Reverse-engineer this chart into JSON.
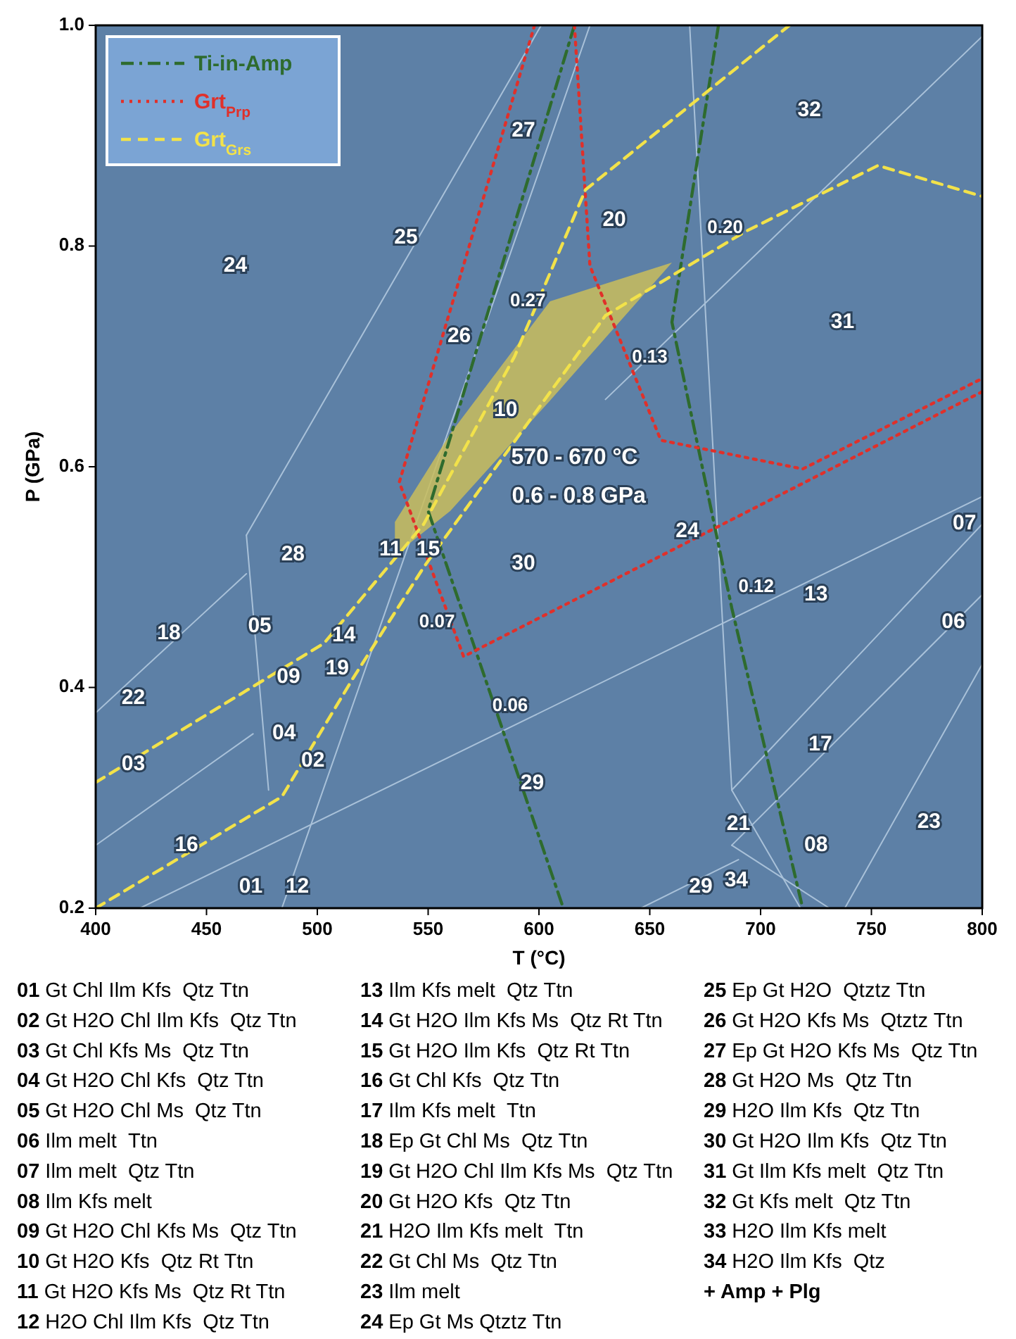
{
  "chart_data": {
    "type": "line",
    "xlabel": "T (°C)",
    "ylabel": "P (GPa)",
    "xlim": [
      400,
      800
    ],
    "ylim": [
      0.2,
      1.0
    ],
    "xticks": [
      400,
      450,
      500,
      550,
      600,
      650,
      700,
      750,
      800
    ],
    "yticks": [
      0.2,
      0.4,
      0.6,
      0.8,
      {
        "value": 1,
        "label": "1.0"
      }
    ],
    "grid": false,
    "legend": "top left",
    "series": [
      {
        "color": "#a9c1d9",
        "line_style": "solid",
        "x": [
          468,
          601
        ],
        "values": [
          0.538,
          1.0
        ]
      },
      {
        "color": "#a9c1d9",
        "line_style": "solid",
        "x": [
          400,
          468
        ],
        "values": [
          0.377,
          0.503
        ]
      },
      {
        "color": "#a9c1d9",
        "line_style": "solid",
        "x": [
          400,
          471
        ],
        "values": [
          0.257,
          0.358
        ]
      },
      {
        "color": "#a9c1d9",
        "line_style": "solid",
        "x": [
          468,
          478
        ],
        "values": [
          0.538,
          0.307
        ]
      },
      {
        "color": "#a9c1d9",
        "line_style": "solid",
        "x": [
          484,
          623
        ],
        "values": [
          0.2,
          1.0
        ]
      },
      {
        "color": "#a9c1d9",
        "line_style": "solid",
        "x": [
          668,
          687,
          718
        ],
        "values": [
          1.0,
          0.307,
          0.2
        ]
      },
      {
        "color": "#a9c1d9",
        "line_style": "solid",
        "x": [
          420,
          800
        ],
        "values": [
          0.2,
          0.573
        ]
      },
      {
        "color": "#a9c1d9",
        "line_style": "solid",
        "x": [
          687,
          800
        ],
        "values": [
          0.307,
          0.548
        ]
      },
      {
        "color": "#a9c1d9",
        "line_style": "solid",
        "x": [
          687,
          800
        ],
        "values": [
          0.257,
          0.484
        ]
      },
      {
        "color": "#a9c1d9",
        "line_style": "solid",
        "x": [
          738,
          800
        ],
        "values": [
          0.2,
          0.421
        ]
      },
      {
        "color": "#a9c1d9",
        "line_style": "solid",
        "x": [
          630,
          800
        ],
        "values": [
          0.661,
          0.99
        ]
      },
      {
        "color": "#a9c1d9",
        "line_style": "solid",
        "x": [
          687,
          731
        ],
        "values": [
          0.257,
          0.2
        ]
      },
      {
        "color": "#a9c1d9",
        "line_style": "solid",
        "x": [
          646,
          690
        ],
        "values": [
          0.2,
          0.244
        ]
      },
      {
        "color": "#c9bd5c",
        "x": [
          535,
          560,
          605,
          660
        ],
        "values": [
          null,
          null,
          null,
          null
        ],
        "lower": [
          0.52,
          0.56,
          0.66,
          0.785
        ],
        "upper": [
          0.55,
          0.63,
          0.75,
          0.785
        ]
      },
      {
        "name": "Ti-in-Amp",
        "color": "#2e6b2e",
        "line_style": "dashdot",
        "x": [
          616,
          550,
          611,
          null,
          681,
          660,
          687,
          719
        ],
        "values": [
          1.0,
          0.56,
          0.2,
          null,
          1.0,
          0.731,
          0.472,
          0.2
        ]
      },
      {
        "name": "Grt$_{Prp}$",
        "color": "#e0302a",
        "line_style": "dotted",
        "x": [
          616,
          623,
          655,
          719,
          800,
          null,
          598,
          537,
          566,
          800
        ],
        "values": [
          1.0,
          0.782,
          0.624,
          0.598,
          0.68,
          null,
          1.0,
          0.586,
          0.428,
          0.668
        ]
      },
      {
        "name": "Grt$_{Grs}$",
        "color": "#f2e24a",
        "line_style": "dashed",
        "x": [
          400,
          503,
          548,
          589,
          621,
          713,
          null,
          400,
          484,
          516,
          548,
          630,
          693,
          753,
          800
        ],
        "values": [
          0.314,
          0.44,
          0.548,
          0.7,
          0.851,
          1.0,
          null,
          0.2,
          0.301,
          0.408,
          0.509,
          0.737,
          0.813,
          0.873,
          0.845
        ]
      }
    ],
    "annotations": [
      "01",
      "02",
      "03",
      "04",
      "05",
      "06",
      "07",
      "08",
      "09",
      "10",
      "11",
      "12",
      "13",
      "14",
      "15",
      "16",
      "17",
      "18",
      "19",
      "20",
      "21",
      "22",
      "23",
      "24",
      "24",
      "25",
      "26",
      "27",
      "28",
      "29",
      "29",
      "30",
      "31",
      "32",
      "34",
      "0.27",
      "0.20",
      "0.13",
      "0.07",
      "0.12",
      "0.06",
      "570 - 670 °C",
      "0.6 - 0.8 GPa",
      "01 Gt Chl Ilm Kfs  Qtz Ttn",
      "02 Gt H2O Chl Ilm Kfs  Qtz Ttn",
      "03 Gt Chl Kfs Ms  Qtz Ttn",
      "04 Gt H2O Chl Kfs  Qtz Ttn",
      "05 Gt H2O Chl Ms  Qtz Ttn",
      "06 Ilm melt  Ttn",
      "07 Ilm melt  Qtz Ttn",
      "08 Ilm Kfs melt",
      "09 Gt H2O Chl Kfs Ms  Qtz Ttn",
      "10 Gt H2O Kfs  Qtz Rt Ttn",
      "11 Gt H2O Kfs Ms  Qtz Rt Ttn",
      "12 H2O Chl Ilm Kfs  Qtz Ttn",
      "13 Ilm Kfs melt  Qtz Ttn",
      "14 Gt H2O Ilm Kfs Ms  Qtz Rt Ttn",
      "15 Gt H2O Ilm Kfs  Qtz Rt Ttn",
      "16 Gt Chl Kfs  Qtz Ttn",
      "17 Ilm Kfs melt  Ttn",
      "18 Ep Gt Chl Ms  Qtz Ttn",
      "19 Gt H2O Chl Ilm Kfs Ms  Qtz Ttn",
      "20 Gt H2O Kfs  Qtz Ttn",
      "21 H2O Ilm Kfs melt  Ttn",
      "22 Gt Chl Ms  Qtz Ttn",
      "23 Ilm melt",
      "24 Ep Gt Ms Qtztz Ttn",
      "25 Ep Gt H2O  Qtztz Ttn",
      "26 Gt H2O Kfs Ms  Qtztz Ttn",
      "27 Ep Gt H2O Kfs Ms  Qtz Ttn",
      "28 Gt H2O Ms  Qtz Ttn",
      "29 H2O Ilm Kfs  Qtz Ttn",
      "30 Gt H2O Ilm Kfs  Qtz Ttn",
      "31 Gt Ilm Kfs melt  Qtz Ttn",
      "32 Gt Kfs melt  Qtz Ttn",
      "33 H2O Ilm Kfs melt",
      "34 H2O Ilm Kfs  Qtz",
      "+ Amp + Plg"
    ]
  }
}
